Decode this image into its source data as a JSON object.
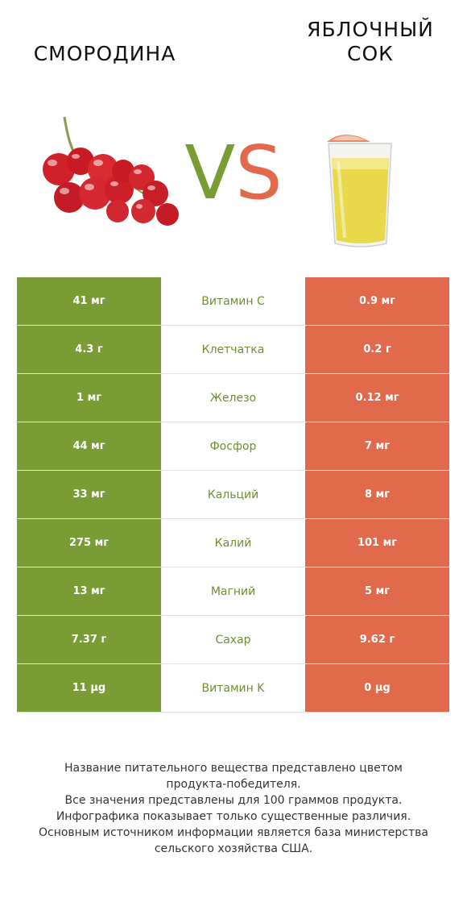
{
  "products": {
    "left": {
      "title_line1": "СМОРОДИНА",
      "color": "#7a9c35"
    },
    "right": {
      "title_line1": "ЯБЛОЧНЫЙ",
      "title_line2": "СОК",
      "color": "#e06a4b"
    }
  },
  "vs": {
    "v": "V",
    "s": "S"
  },
  "rows": [
    {
      "left": "41 мг",
      "name": "Витамин C",
      "right": "0.9 мг"
    },
    {
      "left": "4.3 г",
      "name": "Клетчатка",
      "right": "0.2 г"
    },
    {
      "left": "1 мг",
      "name": "Железо",
      "right": "0.12 мг"
    },
    {
      "left": "44 мг",
      "name": "Фосфор",
      "right": "7 мг"
    },
    {
      "left": "33 мг",
      "name": "Кальций",
      "right": "8 мг"
    },
    {
      "left": "275 мг",
      "name": "Калий",
      "right": "101 мг"
    },
    {
      "left": "13 мг",
      "name": "Магний",
      "right": "5 мг"
    },
    {
      "left": "7.37 г",
      "name": "Сахар",
      "right": "9.62 г"
    },
    {
      "left": "11 µg",
      "name": "Витамин K",
      "right": "0 µg"
    }
  ],
  "footnote": {
    "line1": "Название питательного вещества представлено цветом",
    "line2": "продукта-победителя.",
    "line3": "Все значения представлены для 100 граммов продукта.",
    "line4": "Инфографика показывает только существенные различия.",
    "line5": "Основным источником информации является база министерства",
    "line6": "сельского хозяйства США."
  }
}
